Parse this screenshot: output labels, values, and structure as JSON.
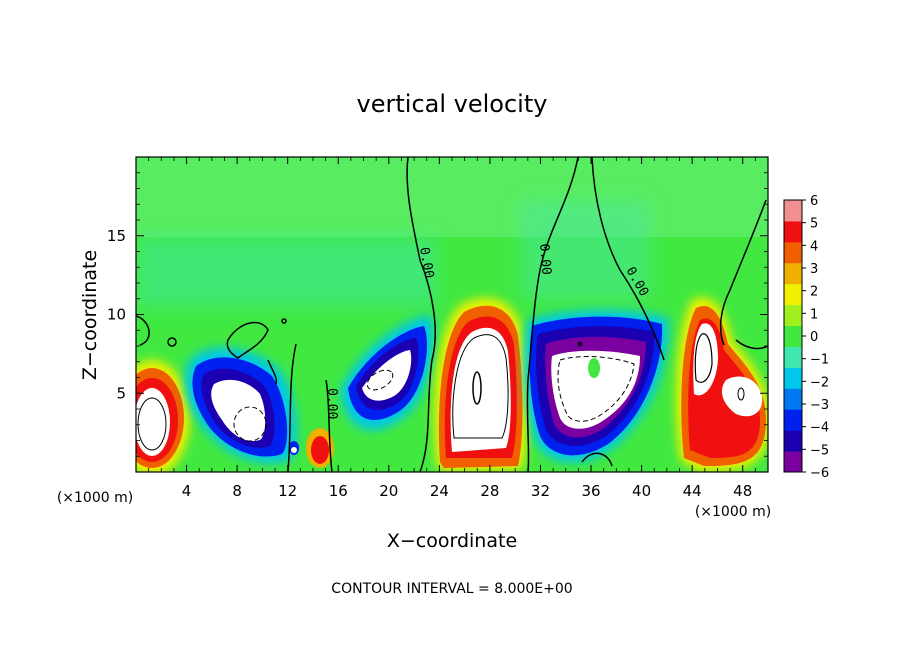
{
  "chart_data": {
    "type": "heatmap",
    "title": "vertical velocity",
    "xlabel": "X−coordinate",
    "ylabel": "Z−coordinate",
    "x_unit_left": "(×1000 m)",
    "x_unit_right": "(×1000 m)",
    "xlim": [
      0,
      50
    ],
    "ylim": [
      0,
      20
    ],
    "x_ticks": [
      4,
      8,
      12,
      16,
      20,
      24,
      28,
      32,
      36,
      40,
      44,
      48
    ],
    "y_ticks": [
      5,
      10,
      15
    ],
    "footer": "CONTOUR INTERVAL = 8.000E+00",
    "contour_label": "0.00",
    "colorbar": {
      "levels": [
        -6,
        -5,
        -4,
        -3,
        -2,
        -1,
        0,
        1,
        2,
        3,
        4,
        5,
        6
      ],
      "labels": [
        "6",
        "5",
        "4",
        "3",
        "2",
        "1",
        "0",
        "−1",
        "−2",
        "−3",
        "−4",
        "−5",
        "−6"
      ],
      "colors": [
        "#7a00a0",
        "#1a00b0",
        "#0020f0",
        "#0078f0",
        "#00c8e8",
        "#40e8b0",
        "#40e840",
        "#a0f020",
        "#f0f000",
        "#f0b000",
        "#f06000",
        "#f01010",
        "#f09090"
      ],
      "over_color": "#ffffff"
    },
    "features": [
      {
        "sign": "up",
        "x": 1.5,
        "z": 3.5,
        "peak": 8
      },
      {
        "sign": "down",
        "x": 8.5,
        "z": 4.5,
        "peak": -8
      },
      {
        "sign": "down",
        "x": 19,
        "z": 6,
        "peak": -8
      },
      {
        "sign": "up",
        "x": 14.5,
        "z": 1.3,
        "peak": 5
      },
      {
        "sign": "up",
        "x": 27,
        "z": 5.5,
        "peak": 10
      },
      {
        "sign": "down",
        "x": 36,
        "z": 5,
        "peak": -9
      },
      {
        "sign": "up",
        "x": 45,
        "z": 6,
        "peak": 8
      }
    ]
  }
}
